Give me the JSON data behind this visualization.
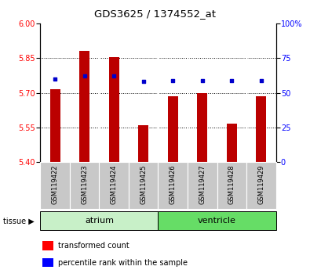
{
  "title": "GDS3625 / 1374552_at",
  "samples": [
    "GSM119422",
    "GSM119423",
    "GSM119424",
    "GSM119425",
    "GSM119426",
    "GSM119427",
    "GSM119428",
    "GSM119429"
  ],
  "red_values": [
    5.715,
    5.88,
    5.855,
    5.56,
    5.685,
    5.7,
    5.565,
    5.685
  ],
  "blue_values": [
    60,
    62,
    62,
    58,
    59,
    59,
    59,
    59
  ],
  "ylim_left": [
    5.4,
    6.0
  ],
  "ylim_right": [
    0,
    100
  ],
  "yticks_left": [
    5.4,
    5.55,
    5.7,
    5.85,
    6.0
  ],
  "yticks_right": [
    0,
    25,
    50,
    75,
    100
  ],
  "atrium_color": "#c8f0c8",
  "ventricle_color": "#66dd66",
  "bar_color": "#bb0000",
  "dot_color": "#0000cc",
  "bar_width": 0.35,
  "tissue_label": "tissue",
  "legend_red": "transformed count",
  "legend_blue": "percentile rank within the sample",
  "grid_yticks": [
    5.55,
    5.7,
    5.85
  ]
}
